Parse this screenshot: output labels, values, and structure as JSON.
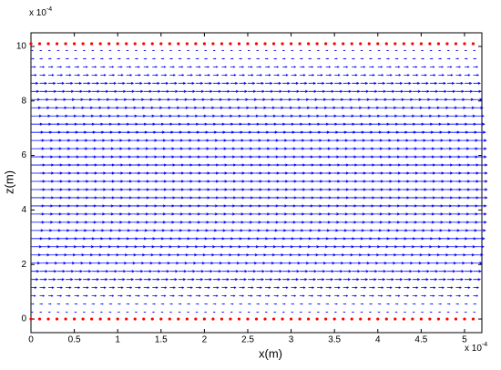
{
  "chart_data": {
    "type": "quiver",
    "xlabel": "x(m)",
    "ylabel": "z(m)",
    "x_multiplier": {
      "base": "x 10",
      "power": "-4"
    },
    "y_multiplier": {
      "base": "x 10",
      "power": "-4"
    },
    "xlim": [
      0,
      5.2
    ],
    "ylim": [
      -0.5,
      10.5
    ],
    "xticks": [
      0,
      0.5,
      1,
      1.5,
      2,
      2.5,
      3,
      3.5,
      4,
      4.5,
      5
    ],
    "yticks": [
      0,
      2,
      4,
      6,
      8,
      10
    ],
    "x": [
      0,
      0.1,
      0.2,
      0.3,
      0.4,
      0.5,
      0.6,
      0.7,
      0.8,
      0.9,
      1,
      1.1,
      1.2,
      1.3,
      1.4,
      1.5,
      1.6,
      1.7,
      1.8,
      1.9,
      2,
      2.1,
      2.2,
      2.3,
      2.4,
      2.5,
      2.6,
      2.7,
      2.8,
      2.9,
      3,
      3.1,
      3.2,
      3.3,
      3.4,
      3.5,
      3.6,
      3.7,
      3.8,
      3.9,
      4,
      4.1,
      4.2,
      4.3,
      4.4,
      4.5,
      4.6,
      4.7,
      4.8,
      4.9,
      5,
      5.1
    ],
    "z": [
      0.25,
      0.55,
      0.85,
      1.15,
      1.45,
      1.75,
      2.05,
      2.35,
      2.65,
      2.95,
      3.25,
      3.55,
      3.85,
      4.15,
      4.45,
      4.75,
      5.05,
      5.35,
      5.65,
      5.95,
      6.25,
      6.55,
      6.85,
      7.15,
      7.45,
      7.75,
      8.05,
      8.35,
      8.65,
      8.95,
      9.25,
      9.55,
      9.85
    ],
    "u": [
      0.02,
      0.03,
      0.05,
      0.06,
      0.08,
      0.09,
      0.1,
      0.11,
      0.12,
      0.13,
      0.14,
      0.15,
      0.15,
      0.15,
      0.16,
      0.16,
      0.16,
      0.16,
      0.16,
      0.15,
      0.15,
      0.15,
      0.14,
      0.13,
      0.12,
      0.11,
      0.1,
      0.09,
      0.08,
      0.06,
      0.05,
      0.03,
      0.02
    ],
    "arrow_color": "#0000ff",
    "wall_z": [
      0,
      10.1
    ],
    "wall_color": "#ff0000"
  }
}
